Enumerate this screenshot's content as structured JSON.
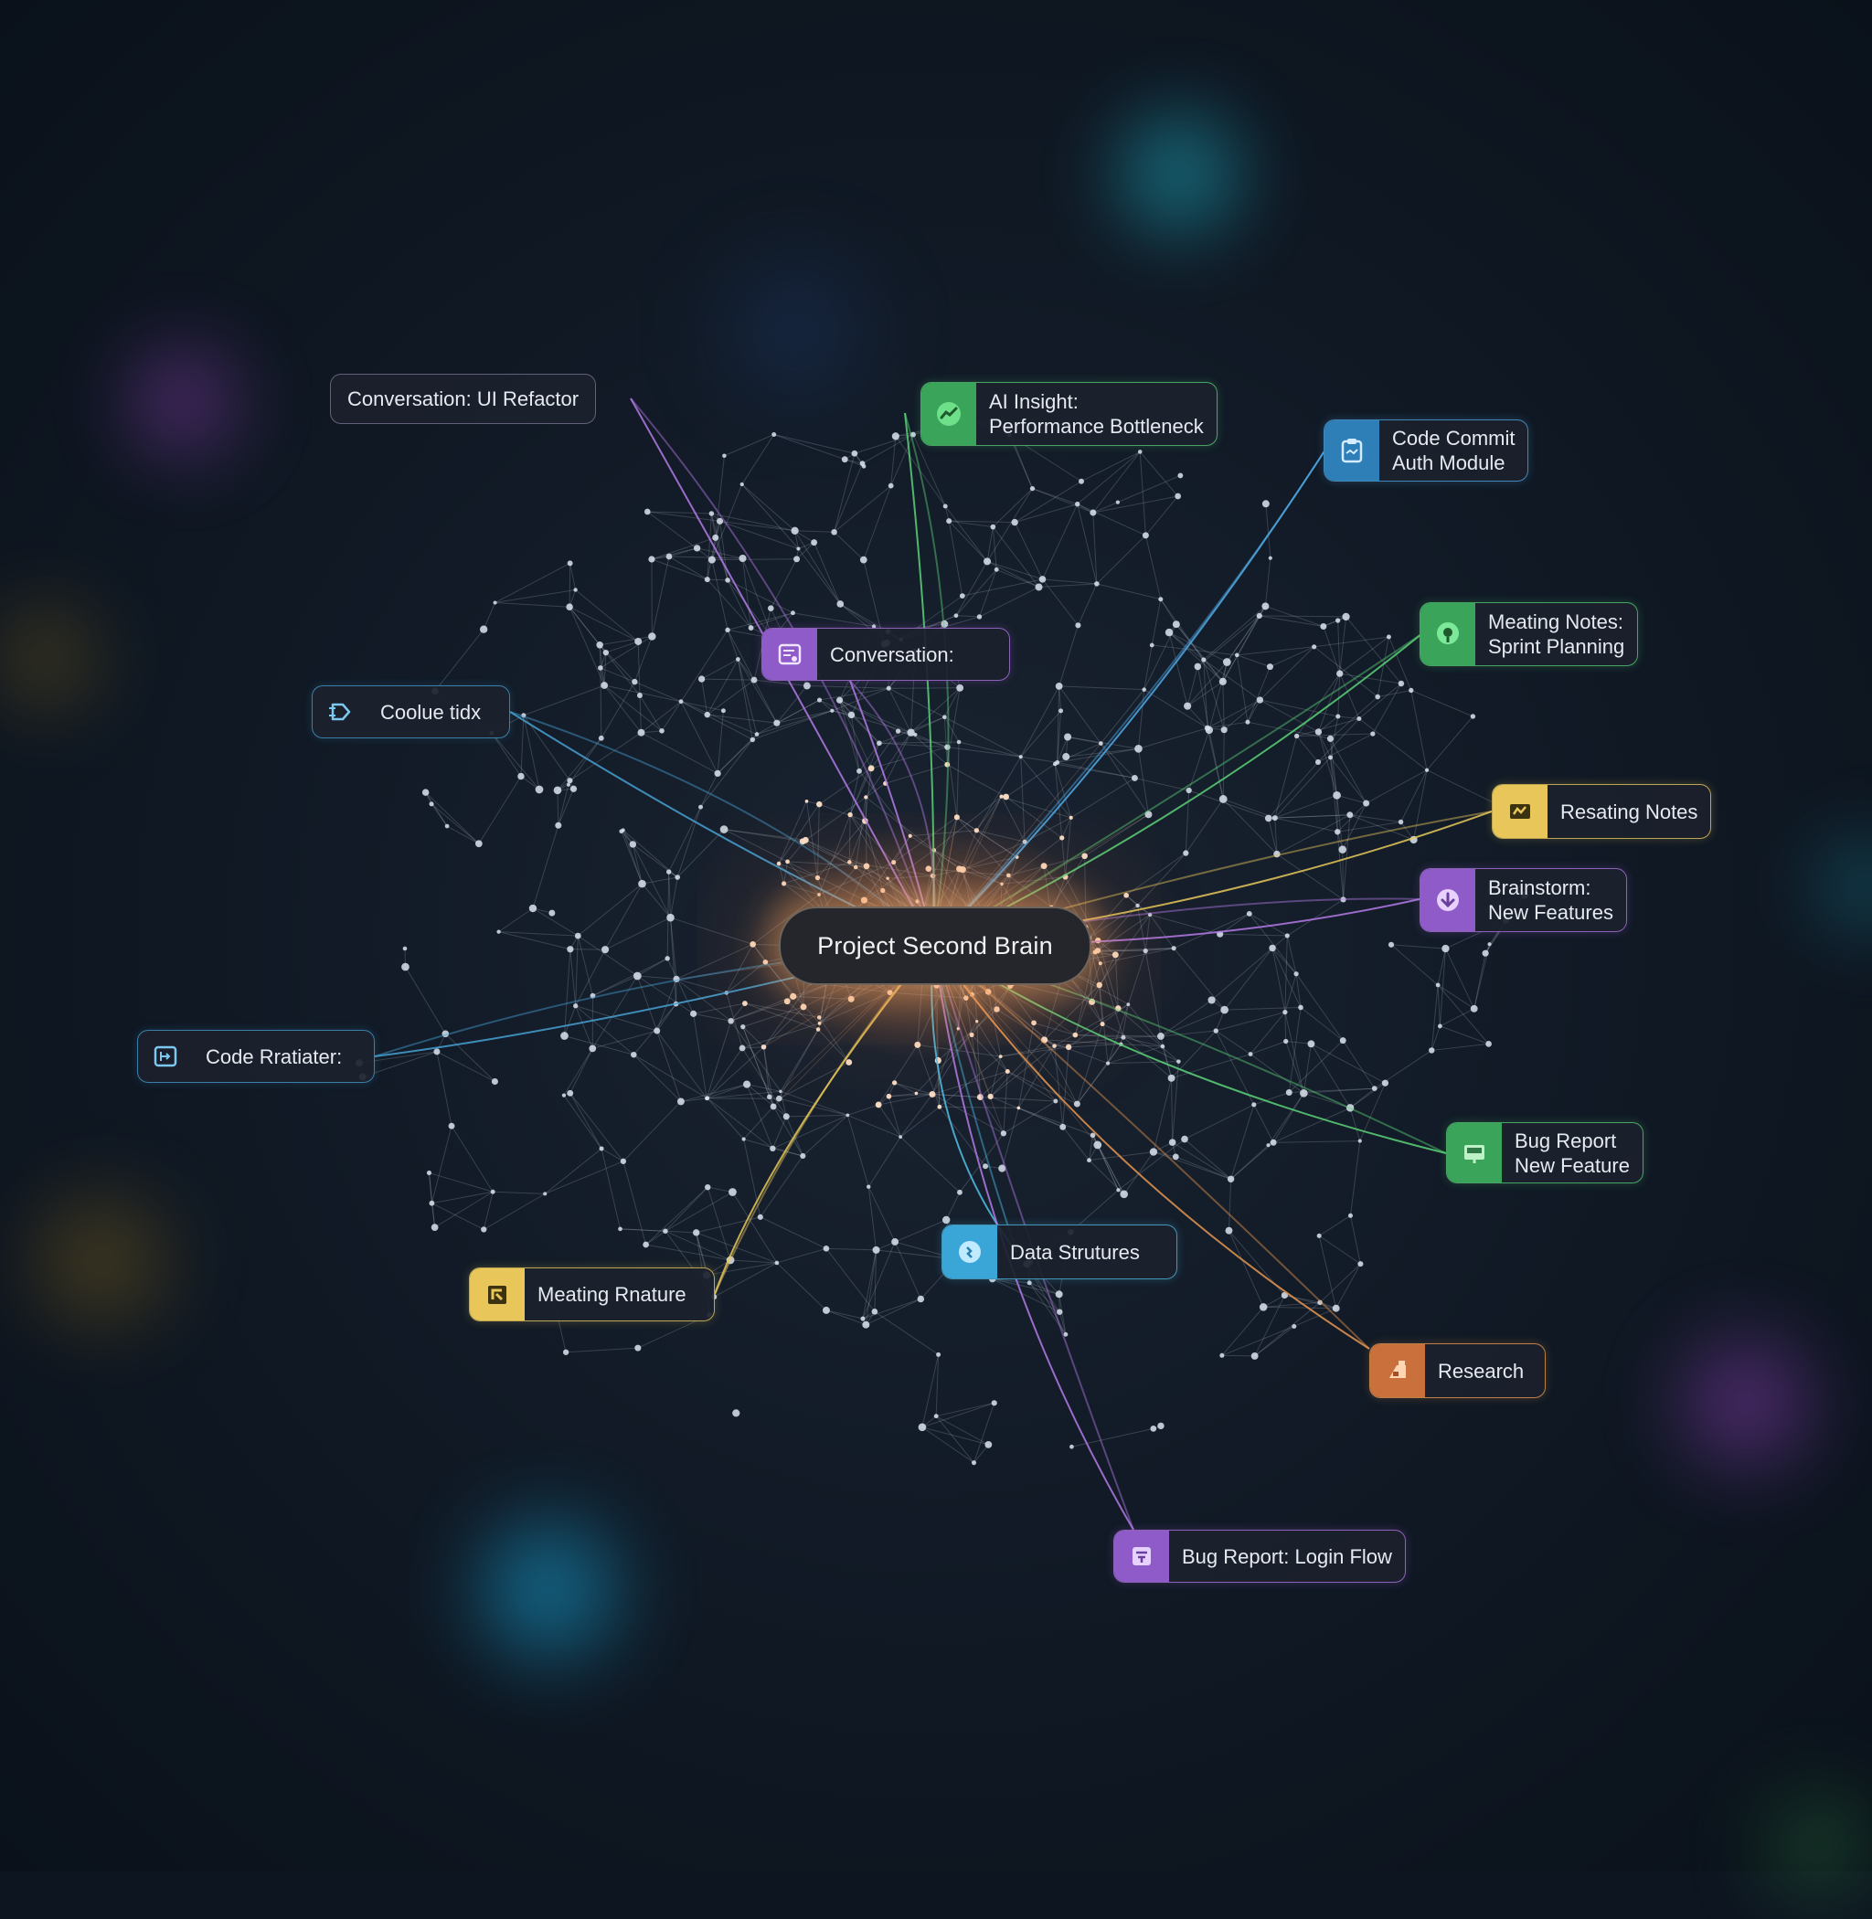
{
  "center": {
    "label": "Project Second Brain",
    "color": "#ffb070"
  },
  "nodes": [
    {
      "id": "conv-ui-refactor",
      "lines": [
        "Conversation: UI Refactor"
      ],
      "icon": "",
      "color": "#b47ae6"
    },
    {
      "id": "ai-insight",
      "lines": [
        "AI Insight:",
        "Performance Bottleneck"
      ],
      "icon": "chart-icon",
      "color": "#5ad278"
    },
    {
      "id": "code-commit",
      "lines": [
        "Code Commit",
        "Auth Module"
      ],
      "icon": "clipboard-icon",
      "color": "#50aae6"
    },
    {
      "id": "conversation",
      "lines": [
        "Conversation:"
      ],
      "icon": "document-icon",
      "color": "#b47ae6"
    },
    {
      "id": "meeting-notes-sprint",
      "lines": [
        "Meating Notes:",
        "Sprint Planning"
      ],
      "icon": "location-pin-icon",
      "color": "#5ad278"
    },
    {
      "id": "code-idx",
      "lines": [
        "Coolue tidx"
      ],
      "icon": "code-arrow-icon",
      "color": "#46a0d2"
    },
    {
      "id": "resating-notes",
      "lines": [
        "Resating Notes"
      ],
      "icon": "notes-icon",
      "color": "#e6c85a"
    },
    {
      "id": "brainstorm",
      "lines": [
        "Brainstorm:",
        "New Features"
      ],
      "icon": "download-icon",
      "color": "#b47ae6"
    },
    {
      "id": "code-rratiater",
      "lines": [
        "Code Rratiater:"
      ],
      "icon": "code-box-icon",
      "color": "#46a0d2"
    },
    {
      "id": "bug-report-new-feature",
      "lines": [
        "Bug Report",
        "New Feature"
      ],
      "icon": "monitor-icon",
      "color": "#5ad278"
    },
    {
      "id": "data-structures",
      "lines": [
        "Data Strutures"
      ],
      "icon": "database-icon",
      "color": "#50bee6"
    },
    {
      "id": "meating-rnature",
      "lines": [
        "Meating Rnature"
      ],
      "icon": "puzzle-icon",
      "color": "#e6c85a"
    },
    {
      "id": "research",
      "lines": [
        "Research"
      ],
      "icon": "flask-icon",
      "color": "#e69650"
    },
    {
      "id": "bug-report-login",
      "lines": [
        "Bug Report: Login Flow"
      ],
      "icon": "bug-icon",
      "color": "#b47ae6"
    }
  ]
}
